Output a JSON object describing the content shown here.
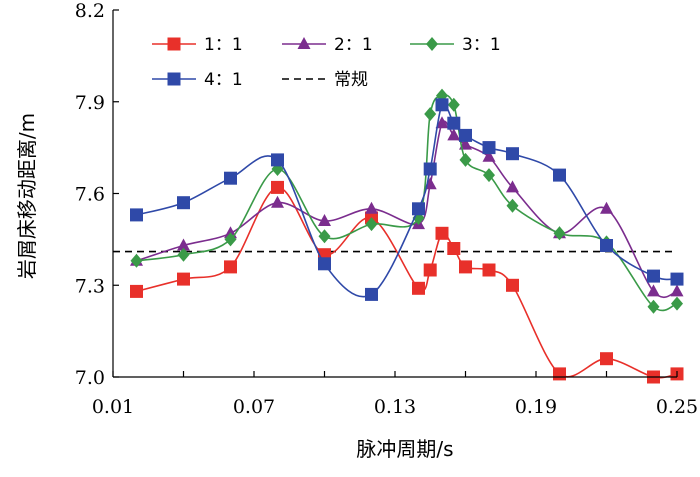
{
  "chart_data": {
    "type": "line",
    "xlabel": "脉冲周期/s",
    "ylabel": "岩屑床移动距离/m",
    "xlim": [
      0.01,
      0.25
    ],
    "ylim": [
      7.0,
      8.2
    ],
    "xticks": [
      0.01,
      0.07,
      0.13,
      0.19,
      0.25
    ],
    "xtick_labels": [
      "0.01",
      "0.07",
      "0.13",
      "0.19",
      "0.25"
    ],
    "yticks": [
      7.0,
      7.3,
      7.6,
      7.9,
      8.2
    ],
    "ytick_labels": [
      "7.0",
      "7.3",
      "7.6",
      "7.9",
      "8.2"
    ],
    "grid": false,
    "legend_position": "top",
    "series": [
      {
        "name": "1：1",
        "color": "#e8302a",
        "marker": "square",
        "x": [
          0.02,
          0.04,
          0.06,
          0.08,
          0.1,
          0.12,
          0.14,
          0.145,
          0.15,
          0.155,
          0.16,
          0.17,
          0.18,
          0.2,
          0.22,
          0.24,
          0.25
        ],
        "y": [
          7.28,
          7.32,
          7.36,
          7.62,
          7.4,
          7.52,
          7.29,
          7.35,
          7.47,
          7.42,
          7.36,
          7.35,
          7.3,
          7.01,
          7.06,
          7.0,
          7.01
        ]
      },
      {
        "name": "2：1",
        "color": "#7b2d8e",
        "marker": "triangle",
        "x": [
          0.02,
          0.04,
          0.06,
          0.08,
          0.1,
          0.12,
          0.14,
          0.145,
          0.15,
          0.155,
          0.16,
          0.17,
          0.18,
          0.2,
          0.22,
          0.24,
          0.25
        ],
        "y": [
          7.38,
          7.43,
          7.47,
          7.57,
          7.51,
          7.55,
          7.5,
          7.63,
          7.83,
          7.79,
          7.76,
          7.72,
          7.62,
          7.47,
          7.55,
          7.28,
          7.28
        ]
      },
      {
        "name": "3：1",
        "color": "#3a9a48",
        "marker": "diamond",
        "x": [
          0.02,
          0.04,
          0.06,
          0.08,
          0.1,
          0.12,
          0.14,
          0.145,
          0.15,
          0.155,
          0.16,
          0.17,
          0.18,
          0.2,
          0.22,
          0.24,
          0.25
        ],
        "y": [
          7.38,
          7.4,
          7.45,
          7.68,
          7.46,
          7.5,
          7.52,
          7.86,
          7.92,
          7.89,
          7.71,
          7.66,
          7.56,
          7.47,
          7.44,
          7.23,
          7.24
        ]
      },
      {
        "name": "4：1",
        "color": "#2f49a8",
        "marker": "square",
        "x": [
          0.02,
          0.04,
          0.06,
          0.08,
          0.1,
          0.12,
          0.14,
          0.145,
          0.15,
          0.155,
          0.16,
          0.17,
          0.18,
          0.2,
          0.22,
          0.24,
          0.25
        ],
        "y": [
          7.53,
          7.57,
          7.65,
          7.71,
          7.37,
          7.27,
          7.55,
          7.68,
          7.89,
          7.83,
          7.79,
          7.75,
          7.73,
          7.66,
          7.43,
          7.33,
          7.32
        ]
      }
    ],
    "reference_line": {
      "name": "常规",
      "y": 7.41,
      "color": "#000000",
      "style": "dashed"
    }
  }
}
